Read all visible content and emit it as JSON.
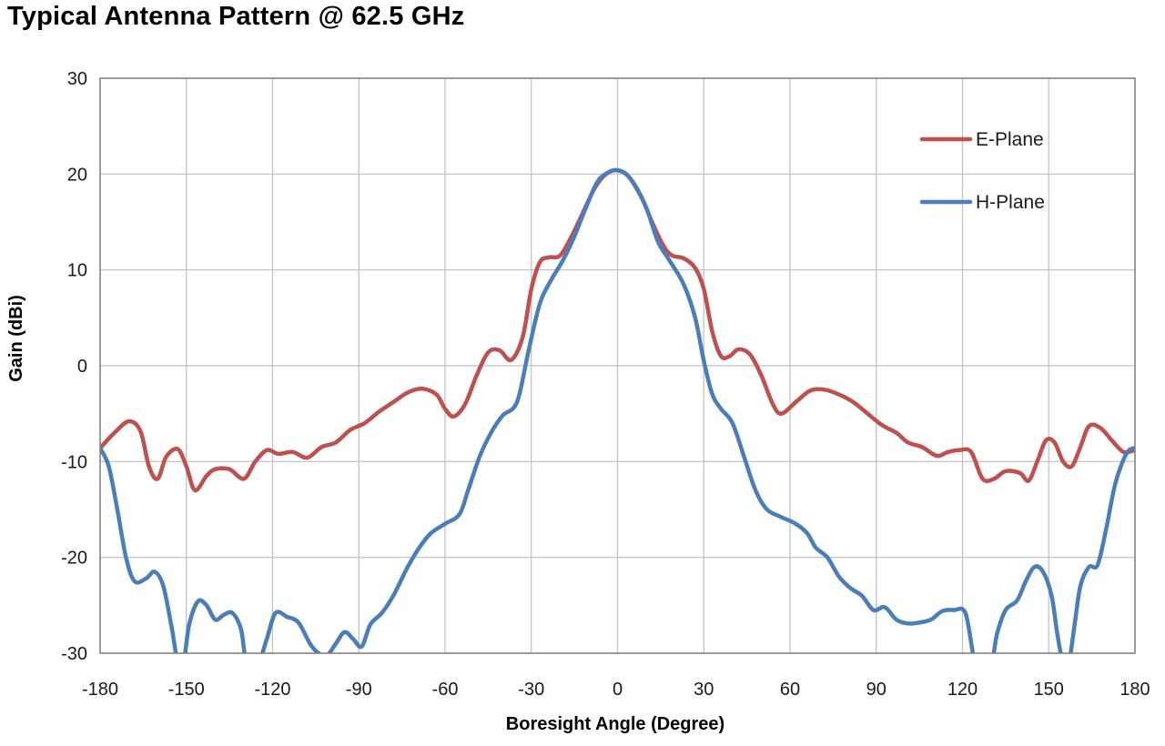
{
  "chart_data": {
    "type": "line",
    "title": "Typical Antenna Pattern @ 62.5 GHz",
    "xlabel": "Boresight Angle (Degree)",
    "ylabel": "Gain (dBi)",
    "xlim": [
      -180,
      180
    ],
    "ylim": [
      -30,
      30
    ],
    "x_ticks": [
      -180,
      -150,
      -120,
      -90,
      -60,
      -30,
      0,
      30,
      60,
      90,
      120,
      150,
      180
    ],
    "y_ticks": [
      30,
      20,
      10,
      0,
      -10,
      -20,
      -30
    ],
    "x_tick_labels": [
      "-180",
      "-150",
      "-120",
      "-90",
      "-60",
      "-30",
      "0",
      "30",
      "60",
      "90",
      "120",
      "150",
      "180"
    ],
    "y_tick_labels": [
      "30",
      "20",
      "10",
      "0",
      "-10",
      "-20",
      "-30"
    ],
    "grid": true,
    "legend_position": "top-right",
    "series": [
      {
        "name": "E-Plane",
        "color": "#c0504d",
        "points": [
          [
            -180,
            -8.6
          ],
          [
            -175,
            -7.0
          ],
          [
            -170,
            -5.8
          ],
          [
            -166,
            -6.8
          ],
          [
            -163,
            -10.5
          ],
          [
            -160,
            -11.8
          ],
          [
            -157,
            -9.5
          ],
          [
            -153,
            -8.7
          ],
          [
            -150,
            -10.5
          ],
          [
            -147,
            -13.0
          ],
          [
            -143,
            -11.5
          ],
          [
            -140,
            -10.8
          ],
          [
            -135,
            -10.8
          ],
          [
            -130,
            -11.8
          ],
          [
            -126,
            -10.0
          ],
          [
            -122,
            -8.8
          ],
          [
            -118,
            -9.2
          ],
          [
            -113,
            -9.0
          ],
          [
            -108,
            -9.6
          ],
          [
            -103,
            -8.5
          ],
          [
            -98,
            -8.0
          ],
          [
            -93,
            -6.7
          ],
          [
            -88,
            -6.0
          ],
          [
            -83,
            -4.8
          ],
          [
            -78,
            -3.8
          ],
          [
            -73,
            -2.8
          ],
          [
            -68,
            -2.4
          ],
          [
            -63,
            -3.0
          ],
          [
            -60,
            -4.5
          ],
          [
            -57,
            -5.3
          ],
          [
            -53,
            -4.0
          ],
          [
            -49,
            -1.0
          ],
          [
            -45,
            1.4
          ],
          [
            -41,
            1.6
          ],
          [
            -37,
            0.6
          ],
          [
            -33,
            3.0
          ],
          [
            -30,
            8.0
          ],
          [
            -27,
            10.8
          ],
          [
            -24,
            11.3
          ],
          [
            -20,
            11.5
          ],
          [
            -16,
            13.5
          ],
          [
            -12,
            16.0
          ],
          [
            -8,
            18.5
          ],
          [
            -4,
            20.0
          ],
          [
            0,
            20.4
          ],
          [
            4,
            19.7
          ],
          [
            8,
            17.8
          ],
          [
            12,
            15.0
          ],
          [
            16,
            12.5
          ],
          [
            19,
            11.5
          ],
          [
            23,
            11.2
          ],
          [
            27,
            10.2
          ],
          [
            30,
            8.0
          ],
          [
            33,
            3.5
          ],
          [
            36,
            1.0
          ],
          [
            39,
            1.0
          ],
          [
            42,
            1.7
          ],
          [
            46,
            1.2
          ],
          [
            50,
            -1.0
          ],
          [
            54,
            -4.0
          ],
          [
            57,
            -5.0
          ],
          [
            62,
            -3.8
          ],
          [
            67,
            -2.6
          ],
          [
            72,
            -2.5
          ],
          [
            77,
            -3.0
          ],
          [
            82,
            -3.8
          ],
          [
            87,
            -5.0
          ],
          [
            92,
            -6.2
          ],
          [
            97,
            -7.0
          ],
          [
            101,
            -8.0
          ],
          [
            106,
            -8.5
          ],
          [
            111,
            -9.4
          ],
          [
            115,
            -9.0
          ],
          [
            119,
            -8.8
          ],
          [
            123,
            -9.0
          ],
          [
            127,
            -11.8
          ],
          [
            131,
            -11.8
          ],
          [
            135,
            -11.0
          ],
          [
            140,
            -11.2
          ],
          [
            143,
            -12.0
          ],
          [
            146,
            -10.0
          ],
          [
            149,
            -7.8
          ],
          [
            152,
            -8.0
          ],
          [
            155,
            -10.0
          ],
          [
            158,
            -10.5
          ],
          [
            161,
            -8.5
          ],
          [
            164,
            -6.3
          ],
          [
            168,
            -6.5
          ],
          [
            172,
            -7.8
          ],
          [
            176,
            -9.0
          ],
          [
            180,
            -8.8
          ]
        ]
      },
      {
        "name": "H-Plane",
        "color": "#4a7ebb",
        "points": [
          [
            -180,
            -8.6
          ],
          [
            -177,
            -10.5
          ],
          [
            -174,
            -15.0
          ],
          [
            -171,
            -20.0
          ],
          [
            -168,
            -22.5
          ],
          [
            -164,
            -22.2
          ],
          [
            -161,
            -21.5
          ],
          [
            -158,
            -23.0
          ],
          [
            -155,
            -27.5
          ],
          [
            -153,
            -31.0
          ],
          [
            -151,
            -31.0
          ],
          [
            -149,
            -27.0
          ],
          [
            -146,
            -24.6
          ],
          [
            -143,
            -25.0
          ],
          [
            -140,
            -26.5
          ],
          [
            -137,
            -26.0
          ],
          [
            -134,
            -25.8
          ],
          [
            -131,
            -27.5
          ],
          [
            -129,
            -31.0
          ],
          [
            -125,
            -31.0
          ],
          [
            -122,
            -28.5
          ],
          [
            -119,
            -25.8
          ],
          [
            -115,
            -26.2
          ],
          [
            -111,
            -26.8
          ],
          [
            -107,
            -29.0
          ],
          [
            -104,
            -30.0
          ],
          [
            -101,
            -30.2
          ],
          [
            -98,
            -29.0
          ],
          [
            -95,
            -27.8
          ],
          [
            -92,
            -28.5
          ],
          [
            -89,
            -29.3
          ],
          [
            -86,
            -27.0
          ],
          [
            -82,
            -25.8
          ],
          [
            -78,
            -24.0
          ],
          [
            -73,
            -21.0
          ],
          [
            -69,
            -19.0
          ],
          [
            -65,
            -17.5
          ],
          [
            -60,
            -16.5
          ],
          [
            -55,
            -15.5
          ],
          [
            -52,
            -13.0
          ],
          [
            -48,
            -9.5
          ],
          [
            -44,
            -7.0
          ],
          [
            -40,
            -5.2
          ],
          [
            -35,
            -3.8
          ],
          [
            -31,
            1.5
          ],
          [
            -27,
            6.5
          ],
          [
            -23,
            9.0
          ],
          [
            -19,
            11.0
          ],
          [
            -15,
            13.5
          ],
          [
            -11,
            16.5
          ],
          [
            -7,
            19.2
          ],
          [
            -3,
            20.2
          ],
          [
            0,
            20.4
          ],
          [
            3,
            20.0
          ],
          [
            6,
            18.8
          ],
          [
            10,
            16.5
          ],
          [
            14,
            13.0
          ],
          [
            18,
            11.0
          ],
          [
            23,
            8.5
          ],
          [
            27,
            5.0
          ],
          [
            30,
            0.5
          ],
          [
            33,
            -3.0
          ],
          [
            36,
            -4.5
          ],
          [
            40,
            -6.0
          ],
          [
            44,
            -9.5
          ],
          [
            48,
            -13.0
          ],
          [
            52,
            -15.0
          ],
          [
            57,
            -15.8
          ],
          [
            62,
            -16.5
          ],
          [
            66,
            -17.5
          ],
          [
            69,
            -19.0
          ],
          [
            73,
            -20.0
          ],
          [
            77,
            -22.0
          ],
          [
            81,
            -23.2
          ],
          [
            85,
            -24.0
          ],
          [
            89,
            -25.5
          ],
          [
            93,
            -25.2
          ],
          [
            97,
            -26.5
          ],
          [
            101,
            -26.9
          ],
          [
            105,
            -26.8
          ],
          [
            109,
            -26.5
          ],
          [
            113,
            -25.6
          ],
          [
            117,
            -25.5
          ],
          [
            121,
            -25.8
          ],
          [
            124,
            -30.5
          ],
          [
            126,
            -31.0
          ],
          [
            130,
            -31.0
          ],
          [
            132,
            -28.0
          ],
          [
            135,
            -25.5
          ],
          [
            139,
            -24.5
          ],
          [
            142,
            -22.5
          ],
          [
            145,
            -21.0
          ],
          [
            148,
            -21.5
          ],
          [
            151,
            -24.0
          ],
          [
            153,
            -28.0
          ],
          [
            155,
            -31.0
          ],
          [
            157,
            -31.0
          ],
          [
            159,
            -27.0
          ],
          [
            161,
            -23.0
          ],
          [
            164,
            -21.0
          ],
          [
            167,
            -20.8
          ],
          [
            170,
            -17.0
          ],
          [
            173,
            -12.5
          ],
          [
            176,
            -9.8
          ],
          [
            178,
            -8.8
          ],
          [
            180,
            -8.6
          ]
        ]
      }
    ]
  }
}
